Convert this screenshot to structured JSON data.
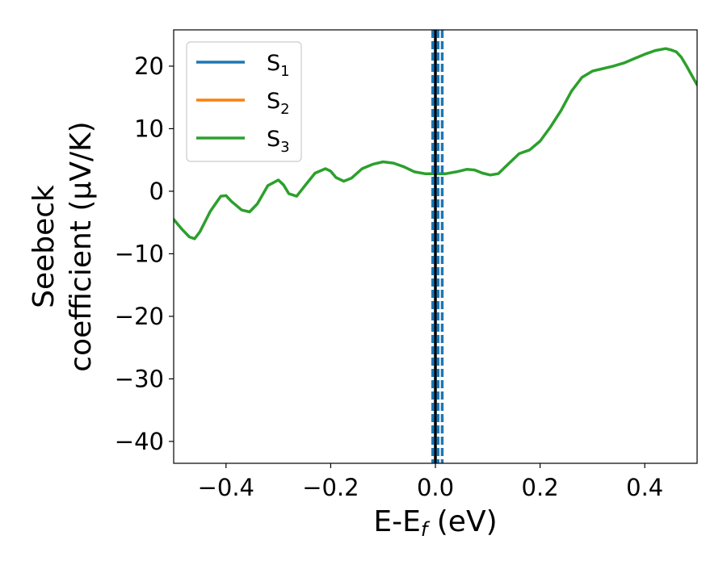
{
  "chart_data": {
    "type": "line",
    "xlabel_main": "E-E",
    "xlabel_sub": "f",
    "xlabel_unit": " (eV)",
    "ylabel_line1": "Seebeck",
    "ylabel_line2": "coefficient  (μV/K)",
    "xlim": [
      -0.5,
      0.5
    ],
    "ylim": [
      -43.5,
      25.8
    ],
    "x_ticks": [
      -0.4,
      -0.2,
      0.0,
      0.2,
      0.4
    ],
    "x_tick_labels": [
      "−0.4",
      "−0.2",
      "0.0",
      "0.2",
      "0.4"
    ],
    "y_ticks": [
      -40,
      -30,
      -20,
      -10,
      0,
      10,
      20
    ],
    "y_tick_labels": [
      "−40",
      "−30",
      "−20",
      "−10",
      "0",
      "10",
      "20"
    ],
    "grid": false,
    "legend_position": "top-left",
    "series": [
      {
        "name": "S",
        "sub": "1",
        "color": "#1f77b4",
        "x": [],
        "y": []
      },
      {
        "name": "S",
        "sub": "2",
        "color": "#ff7f0e",
        "x": [],
        "y": []
      },
      {
        "name": "S",
        "sub": "3",
        "color": "#2ca02c",
        "x": [
          -0.5,
          -0.485,
          -0.47,
          -0.46,
          -0.45,
          -0.43,
          -0.41,
          -0.4,
          -0.39,
          -0.37,
          -0.355,
          -0.34,
          -0.32,
          -0.3,
          -0.29,
          -0.28,
          -0.265,
          -0.25,
          -0.23,
          -0.21,
          -0.2,
          -0.19,
          -0.175,
          -0.16,
          -0.14,
          -0.12,
          -0.1,
          -0.08,
          -0.06,
          -0.04,
          -0.02,
          0.0,
          0.02,
          0.04,
          0.06,
          0.075,
          0.09,
          0.105,
          0.12,
          0.14,
          0.16,
          0.18,
          0.2,
          0.22,
          0.24,
          0.26,
          0.28,
          0.3,
          0.32,
          0.34,
          0.36,
          0.38,
          0.4,
          0.42,
          0.44,
          0.45,
          0.46,
          0.47,
          0.48,
          0.49,
          0.5
        ],
        "y": [
          -4.5,
          -6.0,
          -7.3,
          -7.6,
          -6.5,
          -3.2,
          -0.8,
          -0.7,
          -1.6,
          -3.0,
          -3.3,
          -2.0,
          0.9,
          1.8,
          1.0,
          -0.4,
          -0.8,
          0.8,
          2.9,
          3.6,
          3.2,
          2.2,
          1.6,
          2.1,
          3.6,
          4.3,
          4.7,
          4.5,
          3.9,
          3.1,
          2.8,
          2.8,
          2.8,
          3.1,
          3.5,
          3.4,
          2.9,
          2.6,
          2.8,
          4.4,
          6.0,
          6.6,
          8.0,
          10.3,
          12.9,
          16.0,
          18.2,
          19.2,
          19.6,
          20.0,
          20.5,
          21.2,
          21.9,
          22.5,
          22.8,
          22.6,
          22.3,
          21.4,
          20.0,
          18.5,
          17.0
        ]
      }
    ],
    "vlines": [
      {
        "x": 0.0,
        "color": "#000000",
        "style": "solid"
      },
      {
        "x": -0.005,
        "color": "#1f77b4",
        "style": "dashed"
      },
      {
        "x": 0.005,
        "color": "#1f77b4",
        "style": "dashed"
      },
      {
        "x": 0.013,
        "color": "#1f77b4",
        "style": "dashed"
      }
    ]
  }
}
